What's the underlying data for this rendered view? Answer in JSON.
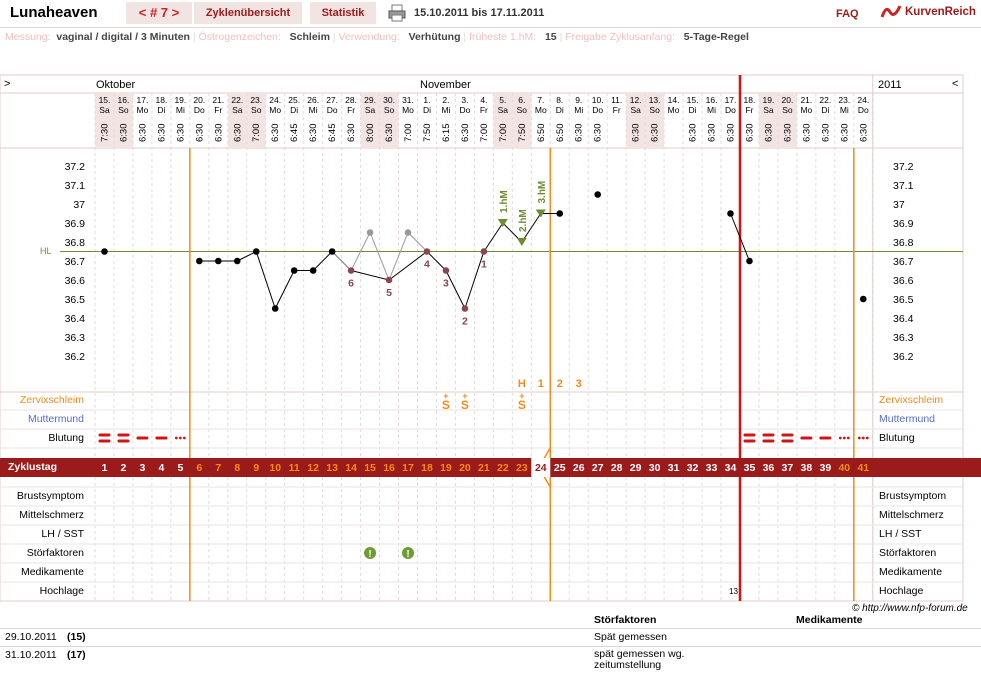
{
  "header": {
    "title": "Lunaheaven",
    "cycle_nav": "< # 7 >",
    "tab_overview": "Zyklenübersicht",
    "tab_stats": "Statistik",
    "date_from": "15.10.2011",
    "date_bis": "bis",
    "date_to": "17.11.2011",
    "faq": "FAQ",
    "brand": "KurvenReich"
  },
  "info": [
    {
      "label": "Messung:",
      "value": "vaginal / digital / 3 Minuten"
    },
    {
      "label": "Östrogenzeichen:",
      "value": "Schleim"
    },
    {
      "label": "Verwendung:",
      "value": "Verhütung"
    },
    {
      "label": "früheste 1.hM:",
      "value": "15"
    },
    {
      "label": "Freigabe Zyklusanfang:",
      "value": "5-Tage-Regel"
    }
  ],
  "chart": {
    "left_arrow": ">",
    "right_arrow": "<",
    "month_left": "Oktober",
    "month_mid": "November",
    "year_right": "2011",
    "hl_label": "HL",
    "temp_ticks": [
      "37.2",
      "37.1",
      "37",
      "36.9",
      "36.8",
      "36.7",
      "36.6",
      "36.5",
      "36.4",
      "36.3",
      "36.2"
    ],
    "days": [
      {
        "d": "15.",
        "w": "Sa",
        "t": "7:30",
        "temp": 36.75,
        "wk": 1
      },
      {
        "d": "16.",
        "w": "So",
        "t": "6:30",
        "temp": null,
        "wk": 1
      },
      {
        "d": "17.",
        "w": "Mo",
        "t": "6:30",
        "temp": null
      },
      {
        "d": "18.",
        "w": "Di",
        "t": "6:30",
        "temp": null
      },
      {
        "d": "19.",
        "w": "Mi",
        "t": "6:30",
        "temp": null
      },
      {
        "d": "20.",
        "w": "Do",
        "t": "6:30",
        "temp": 36.7
      },
      {
        "d": "21.",
        "w": "Fr",
        "t": "6:30",
        "temp": 36.7
      },
      {
        "d": "22.",
        "w": "Sa",
        "t": "6:30",
        "temp": 36.7,
        "wk": 1
      },
      {
        "d": "23.",
        "w": "So",
        "t": "7:00",
        "temp": 36.75,
        "wk": 1
      },
      {
        "d": "24.",
        "w": "Mo",
        "t": "6:30",
        "temp": 36.45
      },
      {
        "d": "25.",
        "w": "Di",
        "t": "6:45",
        "temp": 36.65
      },
      {
        "d": "26.",
        "w": "Mi",
        "t": "6:30",
        "temp": 36.65
      },
      {
        "d": "27.",
        "w": "Do",
        "t": "6:45",
        "temp": 36.75
      },
      {
        "d": "28.",
        "w": "Fr",
        "t": "6:30",
        "temp": 36.65,
        "lbl": "6"
      },
      {
        "d": "29.",
        "w": "Sa",
        "t": "8:00",
        "temp": 36.85,
        "gray": 1,
        "wk": 1
      },
      {
        "d": "30.",
        "w": "So",
        "t": "6:30",
        "temp": 36.6,
        "lbl": "5",
        "wk": 1
      },
      {
        "d": "31.",
        "w": "Mo",
        "t": "7:00",
        "temp": 36.85,
        "gray": 1
      },
      {
        "d": "1.",
        "w": "Di",
        "t": "7:50",
        "temp": 36.75,
        "lbl": "4"
      },
      {
        "d": "2.",
        "w": "Mi",
        "t": "6:15",
        "temp": 36.65,
        "lbl": "3"
      },
      {
        "d": "3.",
        "w": "Do",
        "t": "6:30",
        "temp": 36.45,
        "lbl": "2"
      },
      {
        "d": "4.",
        "w": "Fr",
        "t": "7:00",
        "temp": 36.75,
        "lbl": "1"
      },
      {
        "d": "5.",
        "w": "Sa",
        "t": "7:00",
        "temp": 36.9,
        "hm": "1.hM",
        "wk": 1
      },
      {
        "d": "6.",
        "w": "So",
        "t": "7:50",
        "temp": 36.8,
        "hm": "2.hM",
        "wk": 1
      },
      {
        "d": "7.",
        "w": "Mo",
        "t": "6:50",
        "temp": 36.95,
        "hm": "3.hM"
      },
      {
        "d": "8.",
        "w": "Di",
        "t": "6:50",
        "temp": 36.95
      },
      {
        "d": "9.",
        "w": "Mi",
        "t": "6:30",
        "temp": null
      },
      {
        "d": "10.",
        "w": "Do",
        "t": "6:30",
        "temp": 37.05
      },
      {
        "d": "11.",
        "w": "Fr",
        "t": "",
        "temp": null
      },
      {
        "d": "12.",
        "w": "Sa",
        "t": "6:30",
        "temp": null,
        "wk": 1
      },
      {
        "d": "13.",
        "w": "So",
        "t": "6:30",
        "temp": null,
        "wk": 1
      },
      {
        "d": "14.",
        "w": "Mo",
        "t": "",
        "temp": null
      },
      {
        "d": "15.",
        "w": "Di",
        "t": "6:30",
        "temp": null
      },
      {
        "d": "16.",
        "w": "Mi",
        "t": "6:30",
        "temp": null
      },
      {
        "d": "17.",
        "w": "Do",
        "t": "6:30",
        "temp": 36.95
      },
      {
        "d": "18.",
        "w": "Fr",
        "t": "6:30",
        "temp": 36.7
      },
      {
        "d": "19.",
        "w": "Sa",
        "t": "6:30",
        "temp": null,
        "wk": 1
      },
      {
        "d": "20.",
        "w": "So",
        "t": "6:30",
        "temp": null,
        "wk": 1
      },
      {
        "d": "21.",
        "w": "Mo",
        "t": "6:30",
        "temp": null
      },
      {
        "d": "22.",
        "w": "Di",
        "t": "6:30",
        "temp": null
      },
      {
        "d": "23.",
        "w": "Mi",
        "t": "6:30",
        "temp": null
      },
      {
        "d": "24.",
        "w": "Do",
        "t": "6:30",
        "temp": 36.5
      }
    ],
    "hl_value": 36.75,
    "peak_marks": [
      "H",
      "1",
      "2",
      "3"
    ],
    "zervix_marks": [
      "S",
      "S",
      "S"
    ],
    "row_labels": {
      "zervix": "Zervixschleim",
      "muttermund": "Muttermund",
      "blutung": "Blutung",
      "zyklustag": "Zyklustag",
      "brust": "Brustsymptom",
      "mittel": "Mittelschmerz",
      "lh": "LH / SST",
      "stoer": "Störfaktoren",
      "medi": "Medikamente",
      "hoch": "Hochlage"
    },
    "hochlage_value": "13",
    "copyright": "© http://www.nfp-forum.de",
    "colors": {
      "accent": "#9b1b1b",
      "orange": "#f08c1e",
      "red": "#d21414",
      "green": "#6e8c32",
      "mauve": "#8c4650"
    }
  },
  "notes": {
    "col_stoer": "Störfaktoren",
    "col_medi": "Medikamente",
    "rows": [
      {
        "date": "29.10.2011",
        "num": "(15)",
        "stoer": "Spät gemessen"
      },
      {
        "date": "31.10.2011",
        "num": "(17)",
        "stoer": "spät gemessen wg. zeitumstellung"
      }
    ]
  }
}
